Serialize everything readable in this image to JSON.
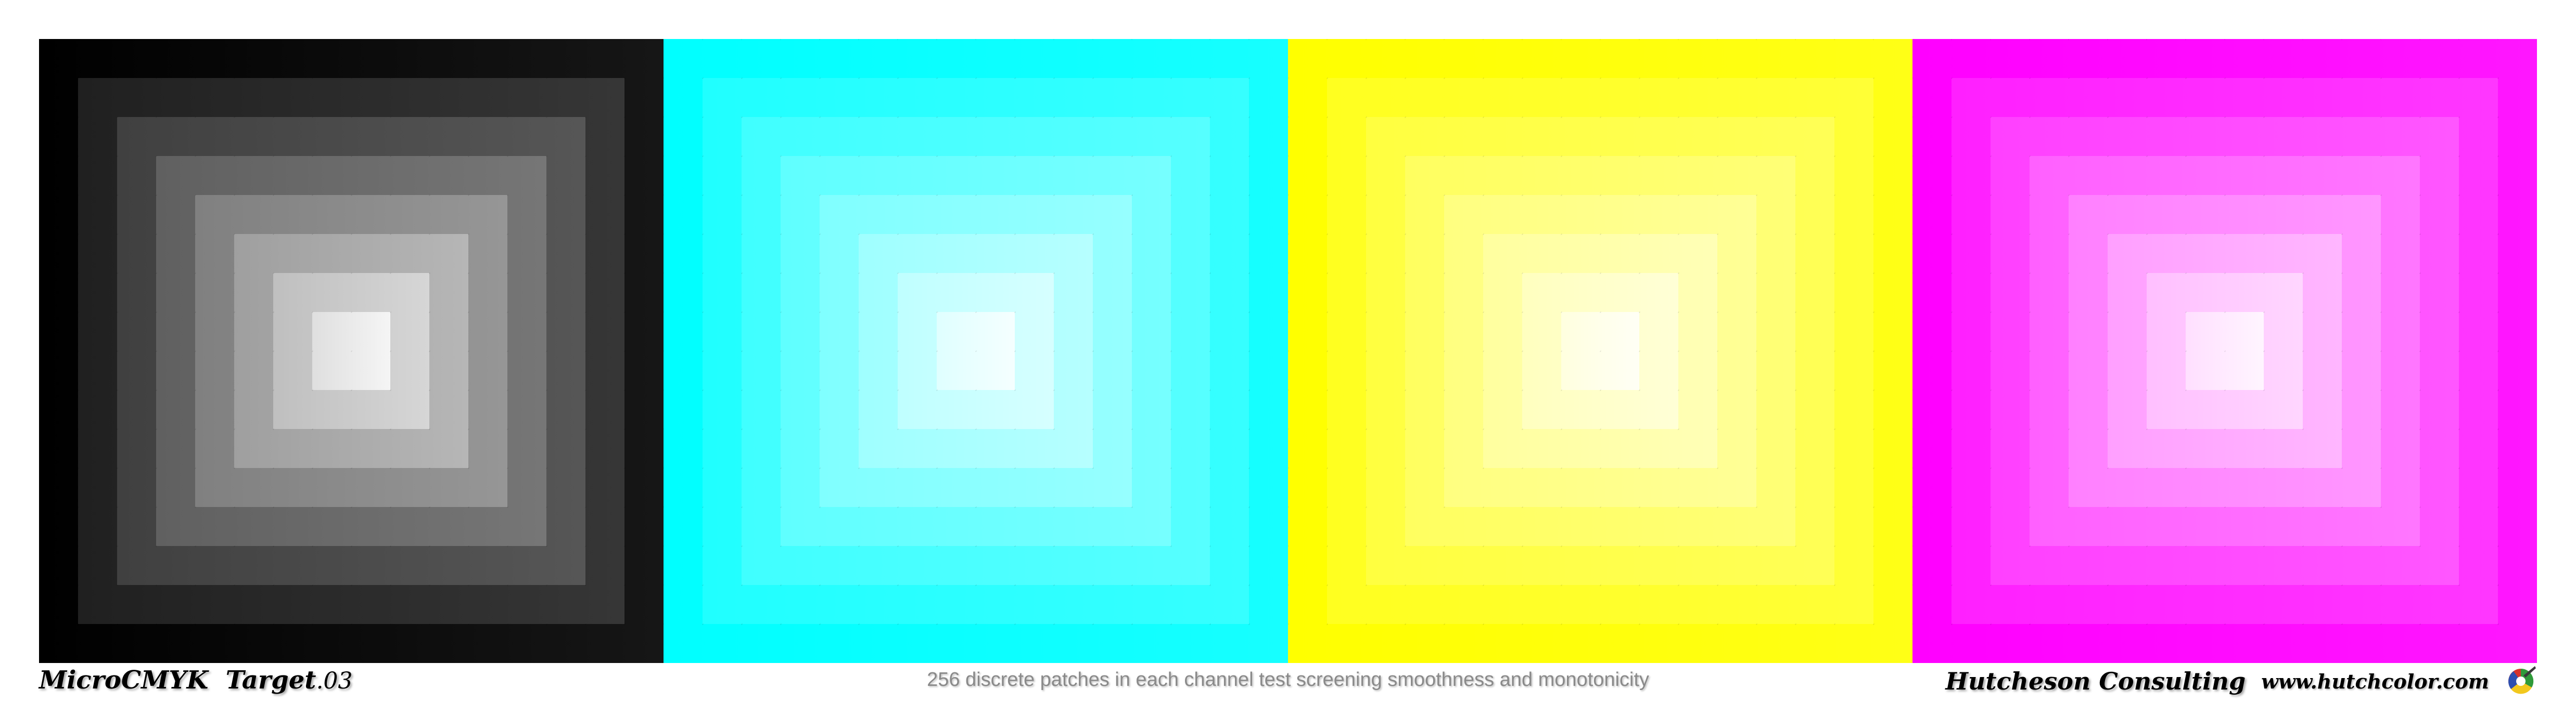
{
  "target": {
    "title": "MicroCMYK  Target",
    "title_suffix": ".03",
    "caption": "256 discrete patches in each channel test screening smoothness and monotonicity",
    "brand": "Hutcheson Consulting",
    "url": "www.hutchcolor.com",
    "logo_icon": "hutchcolor-logo-icon"
  },
  "channels": [
    {
      "name": "black",
      "color": "#000000",
      "levels": 8
    },
    {
      "name": "cyan",
      "color": "#00ffff",
      "levels": 8
    },
    {
      "name": "yellow",
      "color": "#ffff00",
      "levels": 8
    },
    {
      "name": "magenta",
      "color": "#ff00ff",
      "levels": 8
    }
  ],
  "patches_per_channel": 256,
  "background_color": "#ffffff"
}
